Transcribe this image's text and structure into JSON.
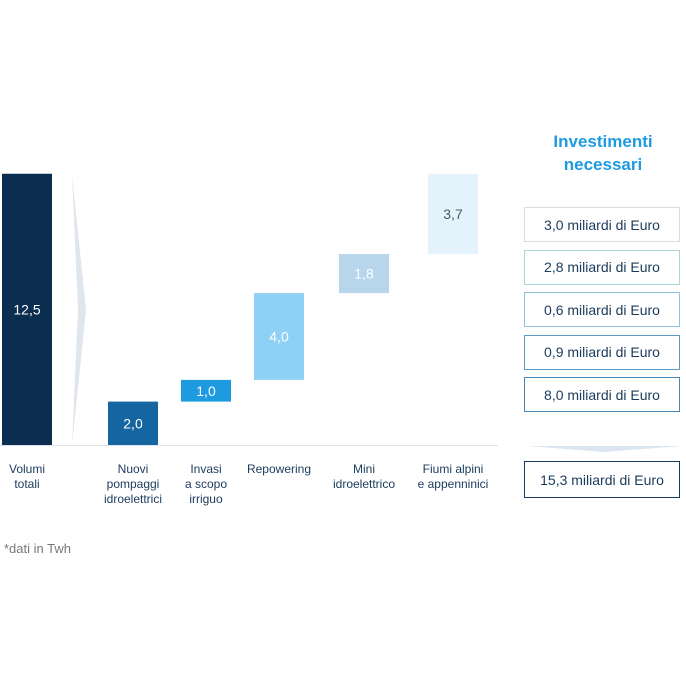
{
  "chart_data": {
    "type": "waterfall",
    "categories": [
      "Volumi\ntotali",
      "Nuovi\npompaggi\nidroelettrici",
      "Invasi\na scopo\nirriguo",
      "Repowering",
      "Mini\nidroelettrico",
      "Fiumi alpini\ne appenninici"
    ],
    "values": [
      12.5,
      2.0,
      1.0,
      4.0,
      1.8,
      3.7
    ],
    "value_labels": [
      "12,5",
      "2,0",
      "1,0",
      "4,0",
      "1,8",
      "3,7"
    ],
    "colors": [
      "#0b2d4f",
      "#1565a0",
      "#1e9be0",
      "#8fd0f5",
      "#b7d6ec",
      "#e3f2fb"
    ],
    "footnote": "*dati in Twh",
    "investments": {
      "title": "Investimenti\nnecessari",
      "items": [
        "3,0 miliardi di Euro",
        "2,8 miliardi di Euro",
        "0,6 miliardi di Euro",
        "0,9 miliardi di Euro",
        "8,0 miliardi di Euro"
      ],
      "total": "15,3 miliardi di Euro"
    }
  }
}
